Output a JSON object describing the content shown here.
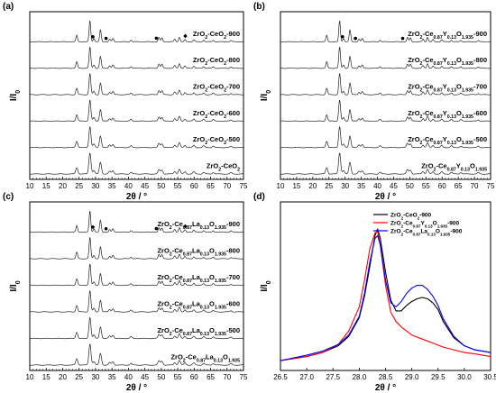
{
  "figure": {
    "panels": [
      {
        "letter": "(a)"
      },
      {
        "letter": "(b)"
      },
      {
        "letter": "(c)"
      },
      {
        "letter": "(d)"
      }
    ]
  },
  "chart_data": [
    {
      "type": "line",
      "panel": "(a)",
      "xlabel": "2θ / °",
      "ylabel": "I/I₀",
      "xlim": [
        10,
        75
      ],
      "xticks": [
        10,
        15,
        20,
        25,
        30,
        35,
        40,
        45,
        50,
        55,
        60,
        65,
        70,
        75
      ],
      "yticks": "none",
      "grid": false,
      "series": [
        {
          "name": "ZrO₂-CeO₂-900"
        },
        {
          "name": "ZrO₂-CeO₂-800"
        },
        {
          "name": "ZrO₂-CeO₂-700"
        },
        {
          "name": "ZrO₂-CeO₂-600"
        },
        {
          "name": "ZrO₂-CeO₂-500"
        },
        {
          "name": "ZrO₂-CeO₂"
        }
      ],
      "peaks_2theta": [
        24.3,
        28.3,
        29.5,
        31.5,
        34.3,
        35.3,
        40.8,
        49.3,
        50.2,
        54.1,
        55.5,
        57.2,
        59.9,
        62.9,
        65.8,
        71.2
      ],
      "markers": [
        {
          "symbol": "filled-circle",
          "x": [
            29.2,
            33.2,
            48.5
          ]
        },
        {
          "symbol": "filled-diamond",
          "x": [
            57.3
          ]
        }
      ]
    },
    {
      "type": "line",
      "panel": "(b)",
      "xlabel": "2θ / °",
      "ylabel": "I/I₀",
      "xlim": [
        10,
        75
      ],
      "xticks": [
        10,
        15,
        20,
        25,
        30,
        35,
        40,
        45,
        50,
        55,
        60,
        65,
        70,
        75
      ],
      "yticks": "none",
      "grid": false,
      "series": [
        {
          "name": "ZrO₂-Ce₀.₈₇Y₀.₁₃O₁.₉₃₅-900"
        },
        {
          "name": "ZrO₂-Ce₀.₈₇Y₀.₁₃O₁.₉₃₅-800"
        },
        {
          "name": "ZrO₂-Ce₀.₈₇Y₀.₁₃O₁.₉₃₅-700"
        },
        {
          "name": "ZrO₂-Ce₀.₈₇Y₀.₁₃O₁.₉₃₅-600"
        },
        {
          "name": "ZrO₂-Ce₀.₈₇Y₀.₁₃O₁.₉₃₅-500"
        },
        {
          "name": "ZrO₂-Ce₀.₈₇Y₀.₁₃O₁.₉₃₅"
        }
      ],
      "peaks_2theta": [
        24.3,
        28.3,
        29.5,
        31.5,
        34.3,
        35.3,
        40.8,
        49.3,
        50.2,
        54.1,
        55.5,
        57.2,
        59.9,
        62.9,
        65.8,
        71.2
      ],
      "markers": [
        {
          "symbol": "filled-circle",
          "x": [
            29.2,
            33.2,
            47.8
          ]
        }
      ]
    },
    {
      "type": "line",
      "panel": "(c)",
      "xlabel": "2θ / °",
      "ylabel": "I/I₀",
      "xlim": [
        10,
        75
      ],
      "xticks": [
        10,
        15,
        20,
        25,
        30,
        35,
        40,
        45,
        50,
        55,
        60,
        65,
        70,
        75
      ],
      "yticks": "none",
      "grid": false,
      "series": [
        {
          "name": "ZrO₂-Ce₀.₈₇La₀.₁₃O₁.₉₃₅-900"
        },
        {
          "name": "ZrO₂-Ce₀.₈₇La₀.₁₃O₁.₉₃₅-800"
        },
        {
          "name": "ZrO₂-Ce₀.₈₇La₀.₁₃O₁.₉₃₅-700"
        },
        {
          "name": "ZrO₂-Ce₀.₈₇La₀.₁₃O₁.₉₃₅-600"
        },
        {
          "name": "ZrO₂-Ce₀.₈₇La₀.₁₃O₁.₉₃₅-500"
        },
        {
          "name": "ZrO₂-Ce₀.₈₇La₀.₁₃O₁.₉₃₅"
        }
      ],
      "peaks_2theta": [
        24.3,
        28.3,
        29.5,
        31.5,
        34.3,
        35.3,
        40.8,
        49.3,
        50.2,
        54.1,
        55.5,
        57.2,
        59.9,
        62.9,
        65.8,
        71.2
      ],
      "markers": [
        {
          "symbol": "filled-circle",
          "x": [
            29.2,
            33.2,
            48.5
          ]
        },
        {
          "symbol": "filled-diamond",
          "x": [
            57.3
          ]
        }
      ]
    },
    {
      "type": "line",
      "panel": "(d)",
      "xlabel": "2θ / °",
      "ylabel": "I/I₀",
      "xlim": [
        26.5,
        30.5
      ],
      "xticks": [
        "26.5",
        "27.0",
        "27.5",
        "28.0",
        "28.5",
        "29.0",
        "29.5",
        "30.0",
        "30.5"
      ],
      "yticks": "none",
      "grid": false,
      "legend": "top-right",
      "series": [
        {
          "name": "ZrO₂-CeO₂-900",
          "color": "#000000",
          "x": [
            26.5,
            27.0,
            27.3,
            27.6,
            27.8,
            28.0,
            28.1,
            28.2,
            28.3,
            28.35,
            28.4,
            28.5,
            28.6,
            28.7,
            28.8,
            28.9,
            29.0,
            29.1,
            29.2,
            29.3,
            29.4,
            29.5,
            29.6,
            29.8,
            30.0,
            30.2,
            30.5
          ],
          "y": [
            0.02,
            0.05,
            0.08,
            0.13,
            0.2,
            0.34,
            0.5,
            0.72,
            0.95,
            1.0,
            0.93,
            0.68,
            0.47,
            0.39,
            0.39,
            0.43,
            0.46,
            0.48,
            0.49,
            0.48,
            0.45,
            0.4,
            0.31,
            0.19,
            0.13,
            0.1,
            0.08
          ]
        },
        {
          "name": "ZrO₂-Ce₀.₈₇Y₀.₁₃O₁.₉₃₅-900",
          "color": "#ff0000",
          "x": [
            26.5,
            27.0,
            27.3,
            27.6,
            27.8,
            28.0,
            28.1,
            28.2,
            28.3,
            28.35,
            28.4,
            28.5,
            28.6,
            28.7,
            28.8,
            28.9,
            29.0,
            29.2,
            29.4,
            29.6,
            29.8,
            30.0,
            30.2,
            30.5
          ],
          "y": [
            0.02,
            0.05,
            0.08,
            0.14,
            0.24,
            0.42,
            0.62,
            0.85,
            0.97,
            0.98,
            0.88,
            0.58,
            0.38,
            0.31,
            0.27,
            0.24,
            0.21,
            0.18,
            0.15,
            0.12,
            0.1,
            0.08,
            0.07,
            0.05
          ]
        },
        {
          "name": "ZrO₂-Ce₀.₈₇La₀.₁₃O₁.₉₃₅-900",
          "color": "#0000ff",
          "x": [
            26.5,
            27.0,
            27.3,
            27.6,
            27.8,
            28.0,
            28.1,
            28.2,
            28.3,
            28.35,
            28.4,
            28.5,
            28.6,
            28.7,
            28.8,
            28.9,
            29.0,
            29.1,
            29.2,
            29.3,
            29.4,
            29.5,
            29.6,
            29.8,
            30.0,
            30.2,
            30.5
          ],
          "y": [
            0.02,
            0.06,
            0.09,
            0.14,
            0.21,
            0.35,
            0.52,
            0.75,
            0.93,
            0.95,
            0.88,
            0.62,
            0.45,
            0.42,
            0.46,
            0.52,
            0.56,
            0.58,
            0.58,
            0.55,
            0.5,
            0.43,
            0.33,
            0.2,
            0.13,
            0.1,
            0.08
          ]
        }
      ]
    }
  ]
}
